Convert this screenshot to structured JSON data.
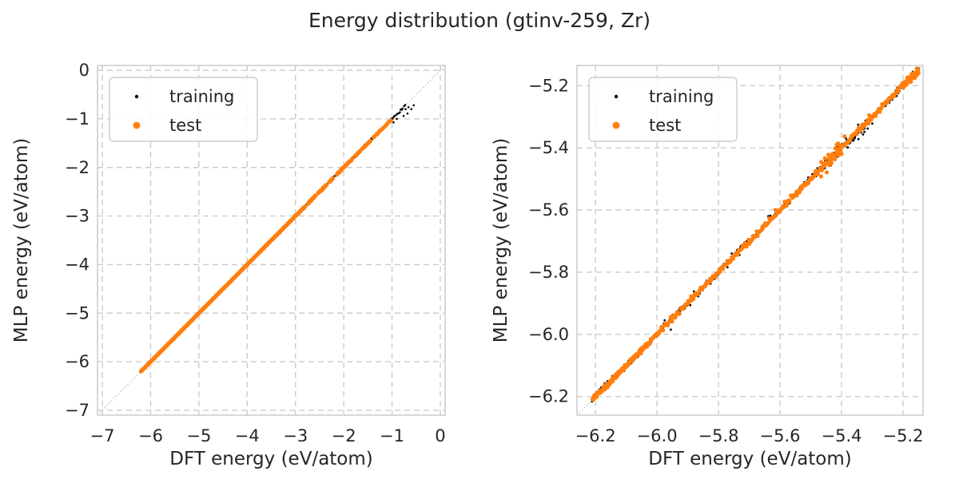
{
  "figure": {
    "title": "Energy distribution (gtinv-259, Zr)"
  },
  "colors": {
    "training": "#000000",
    "test": "#ff7f0e",
    "grid": "#cccccc",
    "spine": "#cccccc",
    "reference_line": "#aaaaaa",
    "text": "#262626",
    "legend_border": "#cccccc",
    "background": "#ffffff"
  },
  "chart_data": [
    {
      "id": "left-plot",
      "type": "scatter",
      "xlabel": "DFT energy (eV/atom)",
      "ylabel": "MLP energy (eV/atom)",
      "xlim": [
        -7.1,
        0.1
      ],
      "ylim": [
        -7.1,
        0.1
      ],
      "xticks": [
        -7,
        -6,
        -5,
        -4,
        -3,
        -2,
        -1,
        0
      ],
      "xtick_labels": [
        "−7",
        "−6",
        "−5",
        "−4",
        "−3",
        "−2",
        "−1",
        "0"
      ],
      "yticks": [
        0,
        -1,
        -2,
        -3,
        -4,
        -5,
        -6,
        -7
      ],
      "ytick_labels": [
        "0",
        "−1",
        "−2",
        "−3",
        "−4",
        "−5",
        "−6",
        "−7"
      ],
      "grid": true,
      "grid_style": "dashed",
      "ref_line": "y = x",
      "legend_position": "upper left",
      "series": [
        {
          "name": "training",
          "color": "#000000",
          "marker_radius": 1.3,
          "seed": 7,
          "segments": [
            [
              -6.2,
              -3.02,
              220,
              0.006
            ],
            [
              -3.02,
              -1.15,
              110,
              0.011
            ],
            [
              -1.15,
              -0.73,
              20,
              0.012
            ]
          ],
          "points": [
            [
              -0.6,
              -0.8
            ],
            [
              -0.55,
              -0.72
            ],
            [
              -0.68,
              -0.89
            ],
            [
              -0.76,
              -0.94
            ],
            [
              -0.72,
              -0.8
            ],
            [
              -0.66,
              -0.76
            ],
            [
              -0.97,
              -1.07
            ],
            [
              -0.9,
              -1.0
            ]
          ]
        },
        {
          "name": "test",
          "color": "#ff7f0e",
          "marker_radius": 2.6,
          "seed": 11,
          "segments": [
            [
              -6.2,
              -3.05,
              430,
              0.0035
            ],
            [
              -3.02,
              -2.8,
              26,
              0.007
            ],
            [
              -2.74,
              -2.58,
              20,
              0.007
            ],
            [
              -2.53,
              -2.36,
              20,
              0.007
            ],
            [
              -2.3,
              -2.22,
              8,
              0.007
            ],
            [
              -2.14,
              -2.02,
              12,
              0.007
            ],
            [
              -1.99,
              -1.82,
              18,
              0.007
            ],
            [
              -1.76,
              -1.66,
              9,
              0.007
            ],
            [
              -1.62,
              -1.45,
              16,
              0.007
            ],
            [
              -1.38,
              -1.02,
              15,
              0.008
            ]
          ],
          "points": []
        }
      ]
    },
    {
      "id": "right-plot",
      "type": "scatter",
      "xlabel": "DFT energy (eV/atom)",
      "ylabel": "MLP energy (eV/atom)",
      "xlim": [
        -6.26,
        -5.135
      ],
      "ylim": [
        -6.26,
        -5.135
      ],
      "xticks": [
        -6.2,
        -6.0,
        -5.8,
        -5.6,
        -5.4,
        -5.2
      ],
      "xtick_labels": [
        "−6.2",
        "−6.0",
        "−5.8",
        "−5.6",
        "−5.4",
        "−5.2"
      ],
      "yticks": [
        -5.2,
        -5.4,
        -5.6,
        -5.8,
        -6.0,
        -6.2
      ],
      "ytick_labels": [
        "−5.2",
        "−5.4",
        "−5.6",
        "−5.8",
        "−6.0",
        "−6.2"
      ],
      "grid": true,
      "grid_style": "dashed",
      "ref_line": "y = x",
      "legend_position": "upper left",
      "series": [
        {
          "name": "training",
          "color": "#000000",
          "marker_radius": 1.4,
          "seed": 23,
          "segments": [
            [
              -6.21,
              -5.15,
              380,
              0.0055
            ],
            [
              -5.46,
              -5.32,
              45,
              0.01
            ],
            [
              -5.26,
              -5.15,
              30,
              0.007
            ]
          ],
          "points": [
            [
              -5.975,
              -5.955
            ],
            [
              -5.955,
              -5.985
            ],
            [
              -5.88,
              -5.862
            ],
            [
              -5.757,
              -5.74
            ],
            [
              -5.41,
              -5.392
            ],
            [
              -5.345,
              -5.372
            ],
            [
              -5.33,
              -5.357
            ],
            [
              -5.638,
              -5.62
            ],
            [
              -6.17,
              -6.158
            ],
            [
              -5.315,
              -5.338
            ],
            [
              -5.3,
              -5.322
            ]
          ]
        },
        {
          "name": "test",
          "color": "#ff7f0e",
          "marker_radius": 2.6,
          "seed": 31,
          "segments": [
            [
              -6.21,
              -6.03,
              150,
              0.004
            ],
            [
              -6.03,
              -5.15,
              300,
              0.0045
            ],
            [
              -5.47,
              -5.4,
              30,
              0.011
            ],
            [
              -5.2,
              -5.15,
              45,
              0.006
            ]
          ],
          "points": [
            [
              -5.39,
              -5.363
            ],
            [
              -5.615,
              -5.6
            ],
            [
              -5.31,
              -5.295
            ]
          ]
        }
      ]
    }
  ],
  "legend": {
    "entries": [
      "training",
      "test"
    ]
  }
}
